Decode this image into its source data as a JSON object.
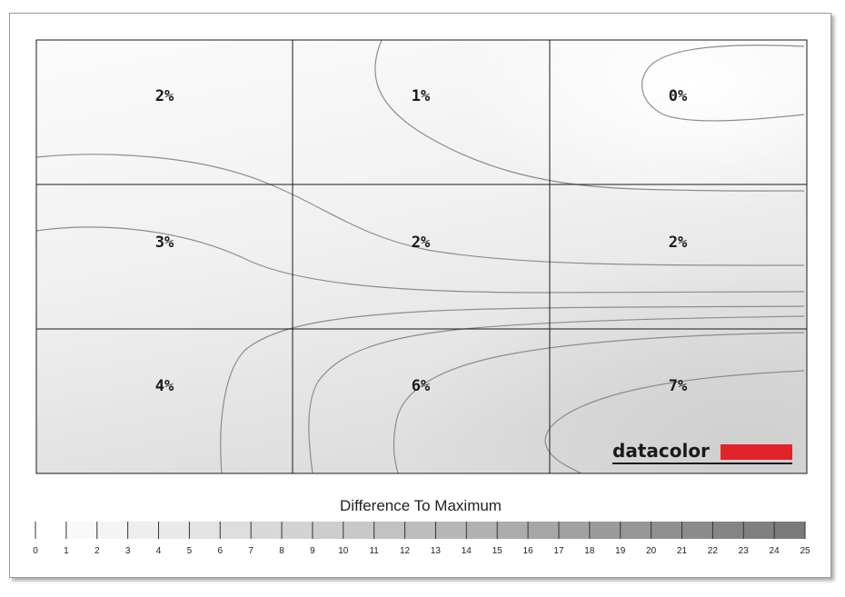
{
  "chart_data": {
    "type": "heatmap",
    "rows": 3,
    "cols": 3,
    "cells": [
      [
        "2%",
        "1%",
        "0%"
      ],
      [
        "3%",
        "2%",
        "2%"
      ],
      [
        "4%",
        "6%",
        "7%"
      ]
    ],
    "values": [
      [
        2,
        1,
        0
      ],
      [
        3,
        2,
        2
      ],
      [
        4,
        6,
        7
      ]
    ],
    "legend": {
      "title": "Difference To Maximum",
      "ticks": [
        "0",
        "1",
        "2",
        "3",
        "4",
        "5",
        "6",
        "7",
        "8",
        "9",
        "10",
        "11",
        "12",
        "13",
        "14",
        "15",
        "16",
        "17",
        "18",
        "19",
        "20",
        "21",
        "22",
        "23",
        "24",
        "25"
      ],
      "range": [
        0,
        25
      ],
      "color_min": "#ffffff",
      "color_max": "#7a7a7a"
    },
    "logo": "datacolor",
    "logo_color": "#e2232a"
  }
}
